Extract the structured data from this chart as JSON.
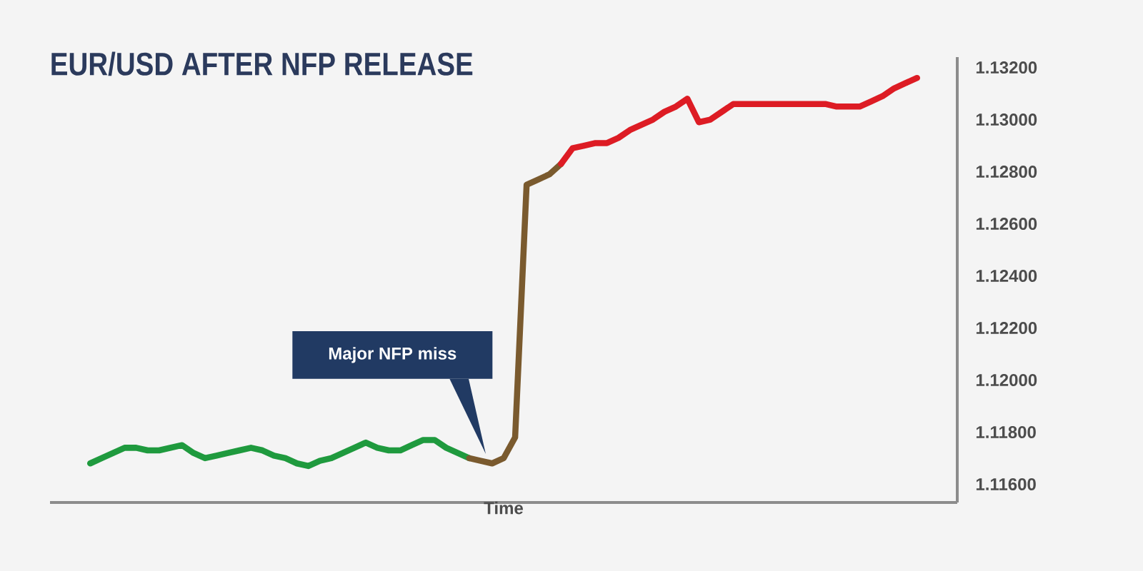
{
  "chart_data": {
    "type": "line",
    "title": "EUR/USD AFTER NFP RELEASE",
    "xlabel": "Time",
    "categories": [
      null,
      null,
      null,
      null,
      null,
      null,
      null,
      null,
      null,
      null,
      null,
      null,
      null,
      null,
      null,
      null,
      null,
      null,
      null,
      null,
      null,
      null,
      null,
      null,
      null,
      null,
      null,
      null,
      null,
      null,
      null,
      null,
      null,
      null,
      null,
      null,
      null,
      null,
      null,
      null,
      null,
      null,
      null,
      null,
      null,
      null,
      null,
      null,
      null,
      null,
      null,
      null,
      null,
      null,
      null,
      null,
      null,
      null,
      null,
      null,
      null,
      null,
      null,
      null,
      null,
      null,
      null,
      null,
      null,
      null,
      null,
      null,
      null,
      null,
      null,
      null,
      null,
      null,
      null
    ],
    "series": [
      {
        "color": "#1f9a3e",
        "values": [
          null,
          null,
          null,
          1.1168,
          1.117,
          1.1172,
          1.1174,
          1.1174,
          1.1173,
          1.1173,
          1.1174,
          1.1175,
          1.1172,
          1.117,
          1.1171,
          1.1172,
          1.1173,
          1.1174,
          1.1173,
          1.1171,
          1.117,
          1.1168,
          1.1167,
          1.1169,
          1.117,
          1.1172,
          1.1174,
          1.1176,
          1.1174,
          1.1173,
          1.1173,
          1.1175,
          1.1177,
          1.1177,
          1.1174,
          1.1172,
          1.117,
          null,
          null,
          null,
          null,
          null,
          null,
          null,
          null,
          null,
          null,
          null,
          null,
          null,
          null,
          null,
          null,
          null,
          null,
          null,
          null,
          null,
          null,
          null,
          null,
          null,
          null,
          null,
          null,
          null,
          null,
          null,
          null,
          null,
          null,
          null,
          null,
          null,
          null,
          null,
          null,
          null,
          null
        ]
      },
      {
        "color": "#7a5a2e",
        "values": [
          null,
          null,
          null,
          null,
          null,
          null,
          null,
          null,
          null,
          null,
          null,
          null,
          null,
          null,
          null,
          null,
          null,
          null,
          null,
          null,
          null,
          null,
          null,
          null,
          null,
          null,
          null,
          null,
          null,
          null,
          null,
          null,
          null,
          null,
          null,
          null,
          1.117,
          1.1169,
          1.1168,
          1.117,
          1.1178,
          1.1275,
          1.1277,
          1.1279,
          1.1283,
          null,
          null,
          null,
          null,
          null,
          null,
          null,
          null,
          null,
          null,
          null,
          null,
          null,
          null,
          null,
          null,
          null,
          null,
          null,
          null,
          null,
          null,
          null,
          null,
          null,
          null,
          null,
          null,
          null,
          null,
          null,
          null,
          null,
          null
        ]
      },
      {
        "color": "#dd1c24",
        "values": [
          null,
          null,
          null,
          null,
          null,
          null,
          null,
          null,
          null,
          null,
          null,
          null,
          null,
          null,
          null,
          null,
          null,
          null,
          null,
          null,
          null,
          null,
          null,
          null,
          null,
          null,
          null,
          null,
          null,
          null,
          null,
          null,
          null,
          null,
          null,
          null,
          null,
          null,
          null,
          null,
          null,
          null,
          null,
          null,
          1.1283,
          1.1289,
          1.129,
          1.1291,
          1.1291,
          1.1293,
          1.1296,
          1.1298,
          1.13,
          1.1303,
          1.1305,
          1.1308,
          1.1299,
          1.13,
          1.1303,
          1.1306,
          1.1306,
          1.1306,
          1.1306,
          1.1306,
          1.1306,
          1.1306,
          1.1306,
          1.1306,
          1.1305,
          1.1305,
          1.1305,
          1.1307,
          1.1309,
          1.1312,
          1.1314,
          1.1316,
          null,
          null,
          null
        ]
      }
    ],
    "ylim": [
      1.1153,
      1.1324
    ],
    "yticks": [
      {
        "value": 1.116,
        "label": "1.11600"
      },
      {
        "value": 1.118,
        "label": "1.11800"
      },
      {
        "value": 1.12,
        "label": "1.12000"
      },
      {
        "value": 1.122,
        "label": "1.12200"
      },
      {
        "value": 1.124,
        "label": "1.12400"
      },
      {
        "value": 1.126,
        "label": "1.12600"
      },
      {
        "value": 1.128,
        "label": "1.12800"
      },
      {
        "value": 1.13,
        "label": "1.13000"
      },
      {
        "value": 1.132,
        "label": "1.13200"
      }
    ],
    "tick_labels": "y",
    "marker": "none",
    "line_style": "solid",
    "annotations": [
      "Major NFP miss"
    ]
  }
}
